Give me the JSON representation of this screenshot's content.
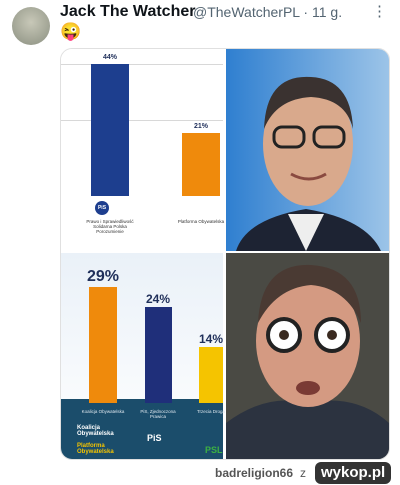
{
  "tweet": {
    "author": "Jack The Watcher",
    "meta": "@TheWatcherPL · 11 g.",
    "text": "😜"
  },
  "charts": [
    {
      "bars": [
        {
          "value": 44,
          "value_label": "44%",
          "label": "Prawo i Sprawiedliwość Solidarna Polska Porozumienie",
          "color": "#1d3e8e"
        },
        {
          "value": 21,
          "value_label": "21%",
          "label": "Platforma Obywatelska",
          "color": "#ef8a0c"
        }
      ],
      "logos": [
        "PiS"
      ]
    },
    {
      "bars": [
        {
          "value": 29,
          "value_label": "29%",
          "label": "Koalicja Obywatelska",
          "color": "#ef8a0c"
        },
        {
          "value": 24,
          "value_label": "24%",
          "label": "PiS, Zjednoczona Prawica",
          "color": "#1f2f7a"
        },
        {
          "value": 14,
          "value_label": "14%",
          "label": "Trzecia Droga",
          "color": "#f5c400"
        }
      ],
      "logos": [
        "Koalicja Obywatelska",
        "Platforma Obywatelska",
        "PiS",
        "PSL"
      ]
    }
  ],
  "footer": {
    "user": "badreligion66",
    "word": "z",
    "site": "wykop.pl"
  }
}
